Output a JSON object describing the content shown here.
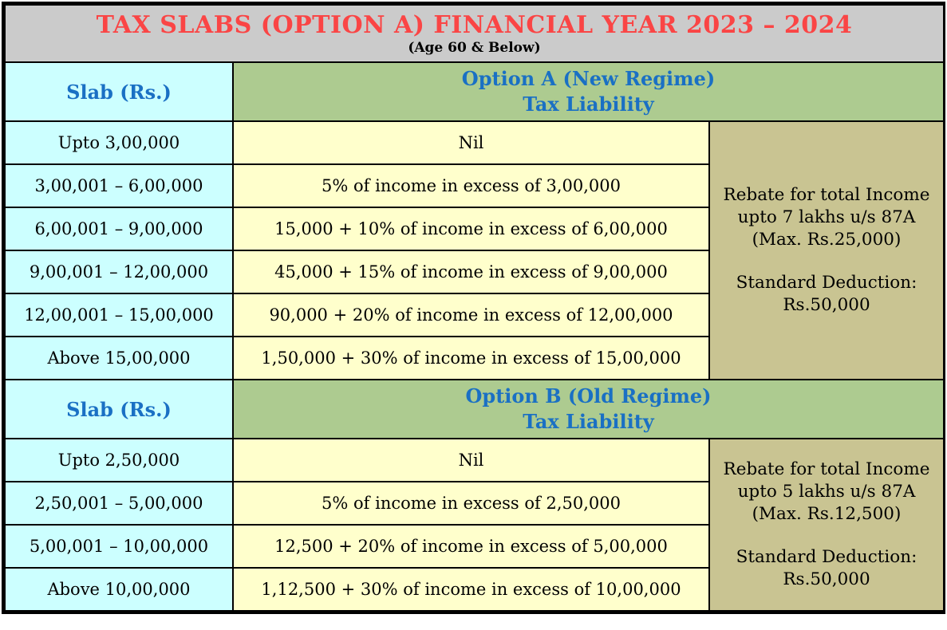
{
  "title": {
    "main": "TAX SLABS (OPTION A) FINANCIAL YEAR 2023 – 2024",
    "subtitle": "(Age 60 & Below)"
  },
  "colors": {
    "title_bg": "#cbcbcb",
    "title_text": "#fa4545",
    "header_text": "#1a70c4",
    "slab_column_bg": "#ccffff",
    "option_header_bg": "#adcb90",
    "liability_column_bg": "#ffffcc",
    "note_column_bg": "#c9c492",
    "border": "#000000"
  },
  "table_a": {
    "slab_header": "Slab (Rs.)",
    "option_header": "Option A (New Regime)\nTax Liability",
    "rows": [
      {
        "slab": "Upto 3,00,000",
        "liability": "Nil"
      },
      {
        "slab": "3,00,001 – 6,00,000",
        "liability": "5% of income in excess of 3,00,000"
      },
      {
        "slab": "6,00,001 – 9,00,000",
        "liability": "15,000 + 10% of income in excess of 6,00,000"
      },
      {
        "slab": "9,00,001 – 12,00,000",
        "liability": "45,000 + 15% of income in excess of 9,00,000"
      },
      {
        "slab": "12,00,001 – 15,00,000",
        "liability": "90,000 + 20% of income in excess of 12,00,000"
      },
      {
        "slab": "Above 15,00,000",
        "liability": "1,50,000 + 30% of income in excess of 15,00,000"
      }
    ],
    "rebate": "Rebate for total Income\nupto 7 lakhs u/s 87A\n(Max. Rs.25,000)",
    "standard_deduction": "Standard Deduction:\nRs.50,000"
  },
  "table_b": {
    "slab_header": "Slab (Rs.)",
    "option_header": "Option B (Old Regime)\nTax Liability",
    "rows": [
      {
        "slab": "Upto 2,50,000",
        "liability": "Nil"
      },
      {
        "slab": "2,50,001 – 5,00,000",
        "liability": "5% of income in excess of 2,50,000"
      },
      {
        "slab": "5,00,001 – 10,00,000",
        "liability": "12,500 + 20% of income in excess of 5,00,000"
      },
      {
        "slab": "Above 10,00,000",
        "liability": "1,12,500 + 30% of income in excess of 10,00,000"
      }
    ],
    "rebate": "Rebate for total Income\nupto 5 lakhs u/s 87A\n(Max. Rs.12,500)",
    "standard_deduction": "Standard Deduction:\nRs.50,000"
  }
}
